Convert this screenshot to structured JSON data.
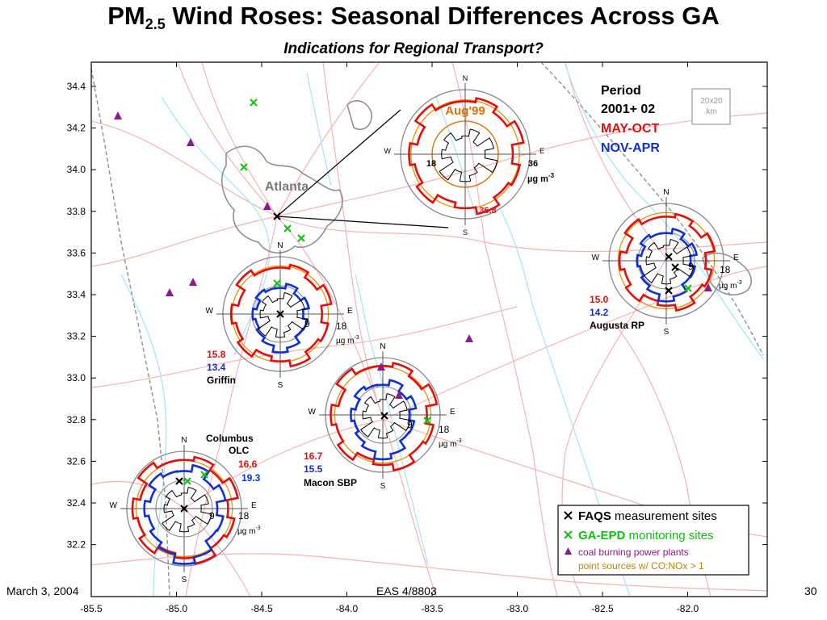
{
  "title": {
    "main": "PM",
    "sub": "2.5",
    "rest": " Wind Roses: Seasonal Differences Across GA"
  },
  "subtitle": "Indications for Regional Transport?",
  "axes": {
    "x_ticks": [
      "-85.5",
      "-85.0",
      "-84.5",
      "-84.0",
      "-83.5",
      "-83.0",
      "-82.5",
      "-82.0"
    ],
    "y_ticks": [
      "34.4",
      "34.2",
      "34.0",
      "33.8",
      "33.6",
      "33.4",
      "33.2",
      "33.0",
      "32.8",
      "32.6",
      "32.4",
      "32.2"
    ]
  },
  "scale_box": {
    "line1": "20x20",
    "line2": "km"
  },
  "period_legend": {
    "heading": "Period",
    "years": "2001+ 02",
    "summer": "MAY-OCT",
    "winter": "NOV-APR",
    "summer_color": "#e01010",
    "winter_color": "#1030d0"
  },
  "atlanta_label": "Atlanta",
  "compass": {
    "n": "N",
    "s": "S",
    "e": "E",
    "w": "W"
  },
  "roses": [
    {
      "site": "Aug'99",
      "summer": "36.8",
      "winter": "",
      "ring_inner": "18",
      "ring_outer": "36",
      "unit": "µg m",
      "unit_exp": "-3"
    },
    {
      "site": "Augusta RP",
      "summer": "15.0",
      "winter": "14.2",
      "ring_inner": "9",
      "ring_outer": "18",
      "unit": "µg m",
      "unit_exp": "-3"
    },
    {
      "site": "Griffin",
      "summer": "15.8",
      "winter": "13.4",
      "ring_inner": "9",
      "ring_outer": "18",
      "unit": "µg m",
      "unit_exp": "-3"
    },
    {
      "site": "Macon SBP",
      "summer": "16.7",
      "winter": "15.5",
      "ring_inner": "9",
      "ring_outer": "18",
      "unit": "µg m",
      "unit_exp": "-3"
    },
    {
      "site_line1": "Columbus",
      "site_line2": "OLC",
      "summer": "16.6",
      "winter": "19.3",
      "ring_inner": "9",
      "ring_outer": "18",
      "unit": "µg m",
      "unit_exp": "-3"
    }
  ],
  "symbol_legend": {
    "faqs_bold": "FAQS",
    "faqs_rest": " measurement sites",
    "epd_bold": "GA-EPD",
    "epd_rest": " monitoring sites",
    "coal": "coal burning power plants",
    "point": "point sources w/ CO:NOx > 1",
    "faqs_color": "#000000",
    "epd_color": "#10c010",
    "coal_color": "#8b1a8b",
    "point_color": "#b8860b"
  },
  "footer": {
    "date": "March 3, 2004",
    "course": "EAS 4/8803",
    "page": "30"
  }
}
